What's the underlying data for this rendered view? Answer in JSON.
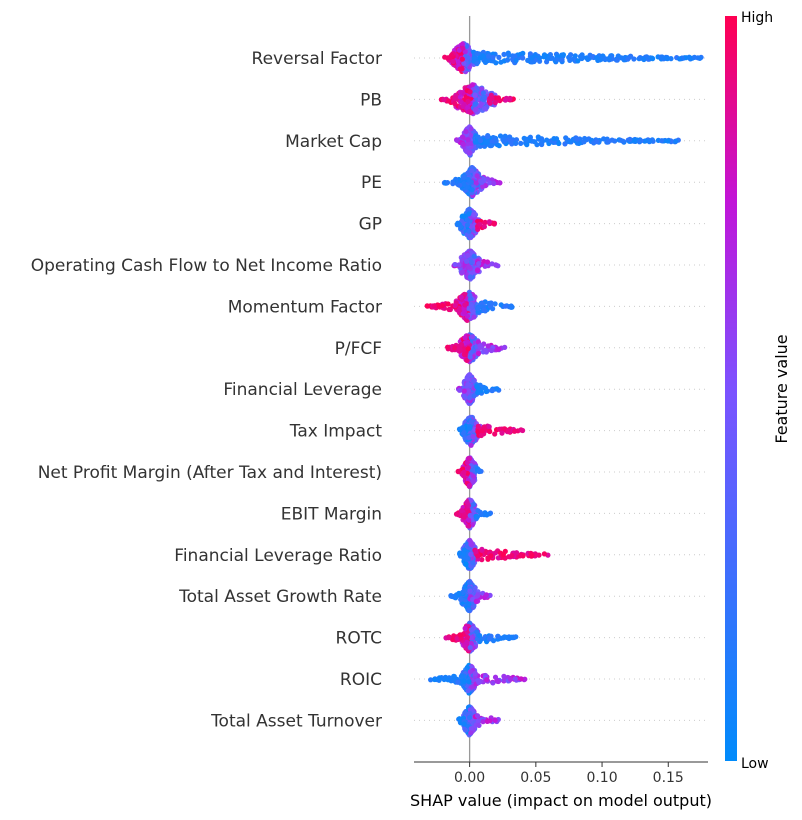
{
  "chart_data": {
    "type": "scatter",
    "subtype": "shap-beeswarm",
    "title": "",
    "xlabel": "SHAP value (impact on model output)",
    "xlim": [
      -0.042,
      0.18
    ],
    "xticks": [
      0.0,
      0.05,
      0.1,
      0.15
    ],
    "xtick_labels": [
      "0.00",
      "0.05",
      "0.10",
      "0.15"
    ],
    "zero_line": true,
    "colorbar": {
      "label": "Feature value",
      "high_label": "High",
      "low_label": "Low",
      "low_color": "#008bfb",
      "high_color": "#ff0052"
    },
    "features": [
      {
        "name": "Reversal Factor",
        "min": -0.02,
        "max": 0.175,
        "core": [
          -0.012,
          0.003
        ],
        "tail_color": "low",
        "left_color": "high"
      },
      {
        "name": "PB",
        "min": -0.022,
        "max": 0.034,
        "core": [
          -0.01,
          0.015
        ],
        "tail_color": "high",
        "left_color": "high"
      },
      {
        "name": "Market Cap",
        "min": -0.01,
        "max": 0.158,
        "core": [
          -0.004,
          0.004
        ],
        "tail_color": "low",
        "left_color": "mix"
      },
      {
        "name": "PE",
        "min": -0.02,
        "max": 0.024,
        "core": [
          -0.004,
          0.008
        ],
        "tail_color": "mix",
        "left_color": "low"
      },
      {
        "name": "GP",
        "min": -0.01,
        "max": 0.02,
        "core": [
          -0.006,
          0.006
        ],
        "tail_color": "high",
        "left_color": "low"
      },
      {
        "name": "Operating Cash Flow to Net Income Ratio",
        "min": -0.012,
        "max": 0.022,
        "core": [
          -0.006,
          0.006
        ],
        "tail_color": "mix",
        "left_color": "mix"
      },
      {
        "name": "Momentum Factor",
        "min": -0.033,
        "max": 0.033,
        "core": [
          -0.008,
          0.006
        ],
        "tail_color": "low",
        "left_color": "high"
      },
      {
        "name": "P/FCF",
        "min": -0.018,
        "max": 0.03,
        "core": [
          -0.006,
          0.006
        ],
        "tail_color": "mix",
        "left_color": "high"
      },
      {
        "name": "Financial Leverage",
        "min": -0.009,
        "max": 0.022,
        "core": [
          -0.004,
          0.004
        ],
        "tail_color": "low",
        "left_color": "mix"
      },
      {
        "name": "Tax Impact",
        "min": -0.01,
        "max": 0.04,
        "core": [
          -0.004,
          0.006
        ],
        "tail_color": "high",
        "left_color": "low"
      },
      {
        "name": "Net Profit Margin (After Tax and Interest)",
        "min": -0.009,
        "max": 0.009,
        "core": [
          -0.004,
          0.004
        ],
        "tail_color": "low",
        "left_color": "high"
      },
      {
        "name": "EBIT Margin",
        "min": -0.01,
        "max": 0.016,
        "core": [
          -0.004,
          0.004
        ],
        "tail_color": "low",
        "left_color": "high"
      },
      {
        "name": "Financial Leverage Ratio",
        "min": -0.01,
        "max": 0.06,
        "core": [
          -0.004,
          0.004
        ],
        "tail_color": "high",
        "left_color": "low"
      },
      {
        "name": "Total Asset Growth Rate",
        "min": -0.015,
        "max": 0.016,
        "core": [
          -0.005,
          0.005
        ],
        "tail_color": "mix",
        "left_color": "low"
      },
      {
        "name": "ROTC",
        "min": -0.018,
        "max": 0.035,
        "core": [
          -0.005,
          0.005
        ],
        "tail_color": "low",
        "left_color": "high"
      },
      {
        "name": "ROIC",
        "min": -0.03,
        "max": 0.045,
        "core": [
          -0.004,
          0.004
        ],
        "tail_color": "mix",
        "left_color": "low"
      },
      {
        "name": "Total Asset Turnover",
        "min": -0.01,
        "max": 0.025,
        "core": [
          -0.004,
          0.004
        ],
        "tail_color": "mix",
        "left_color": "low"
      }
    ]
  }
}
